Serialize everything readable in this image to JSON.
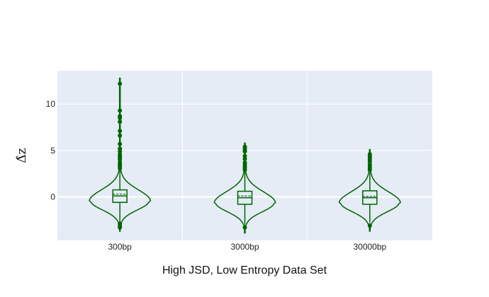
{
  "chart_data": {
    "type": "violin",
    "xlabel": "High JSD, Low Entropy Data Set",
    "ylabel": "Δ̂z",
    "categories": [
      "300bp",
      "3000bp",
      "30000bp"
    ],
    "y_ticks": [
      0,
      5,
      10
    ],
    "ylim": [
      -4.7,
      13.6
    ],
    "grid": true,
    "colors": {
      "series": "#006400",
      "plot_bg": "#e5ecf6",
      "grid": "#ffffff"
    },
    "violins": [
      {
        "category": "300bp",
        "min": -3.7,
        "max": 12.8,
        "q1": -0.6,
        "median": 0.1,
        "q3": 0.75,
        "mean": 0.3,
        "whisker_low": -2.8,
        "whisker_high": 2.9,
        "outliers": [
          12.2,
          9.3,
          8.7,
          8.5,
          8.1,
          7.1,
          6.6,
          5.7,
          5.2,
          4.9,
          4.6,
          4.4,
          4.2,
          4.0,
          3.7,
          3.5,
          3.3,
          3.1,
          -2.9,
          -3.1,
          -3.3
        ]
      },
      {
        "category": "3000bp",
        "min": -3.9,
        "max": 5.8,
        "q1": -0.8,
        "median": -0.1,
        "q3": 0.6,
        "mean": 0.1,
        "whisker_low": -2.9,
        "whisker_high": 2.7,
        "outliers": [
          5.4,
          5.2,
          5.0,
          4.9,
          4.4,
          4.1,
          3.7,
          3.5,
          3.3,
          3.1,
          2.9,
          -3.3
        ]
      },
      {
        "category": "30000bp",
        "min": -3.7,
        "max": 5.1,
        "q1": -0.8,
        "median": -0.1,
        "q3": 0.65,
        "mean": 0.05,
        "whisker_low": -2.7,
        "whisker_high": 2.6,
        "outliers": [
          4.6,
          4.4,
          4.2,
          4.0,
          3.8,
          3.5,
          3.3,
          3.1,
          2.9,
          -3.1
        ]
      }
    ]
  }
}
